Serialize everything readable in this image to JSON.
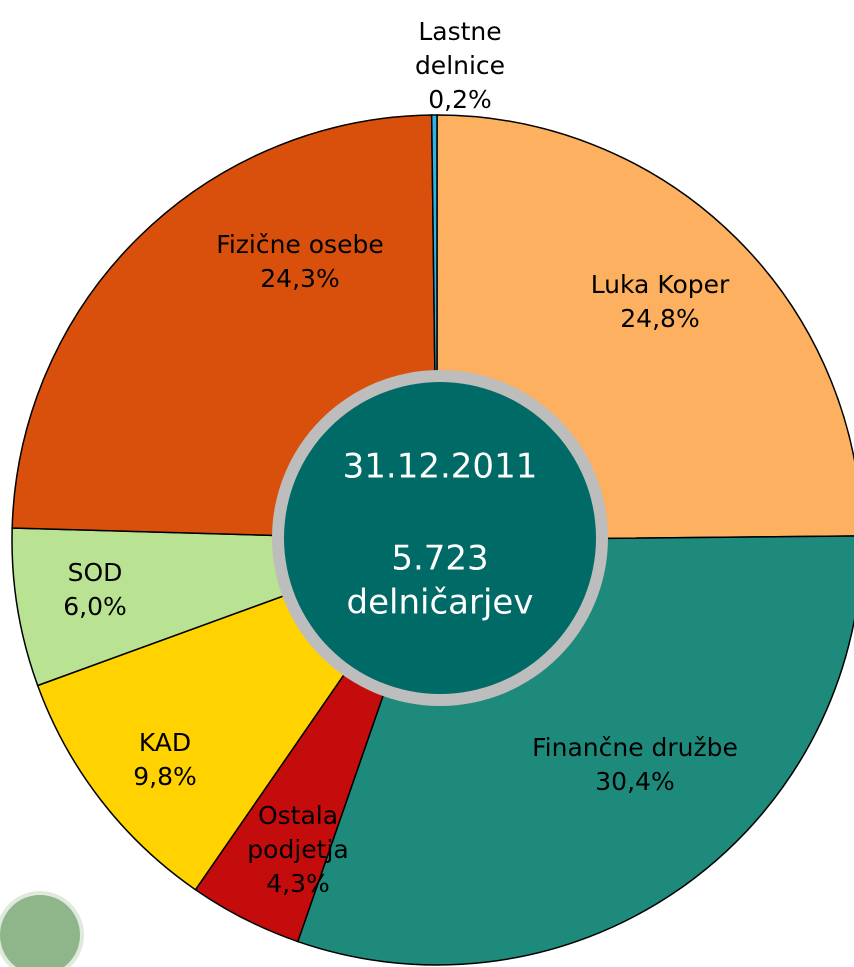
{
  "chart_data": {
    "type": "pie",
    "categories": [
      "Luka Koper",
      "Finančne družbe",
      "Ostala podjetja",
      "KAD",
      "SOD",
      "Fizične osebe",
      "Lastne delnice"
    ],
    "values": [
      24.8,
      30.4,
      4.3,
      9.8,
      6.0,
      24.3,
      0.2
    ],
    "value_labels": [
      "24,8%",
      "30,4%",
      "4,3%",
      "9,8%",
      "6,0%",
      "24,3%",
      "0,2%"
    ],
    "colors": [
      "#fdb060",
      "#1e8a7c",
      "#c40c0c",
      "#ffd200",
      "#b9e393",
      "#d9500c",
      "#2bb5e6"
    ],
    "center_lines": [
      "31.12.2011",
      "5.723",
      "delničarjev"
    ]
  }
}
